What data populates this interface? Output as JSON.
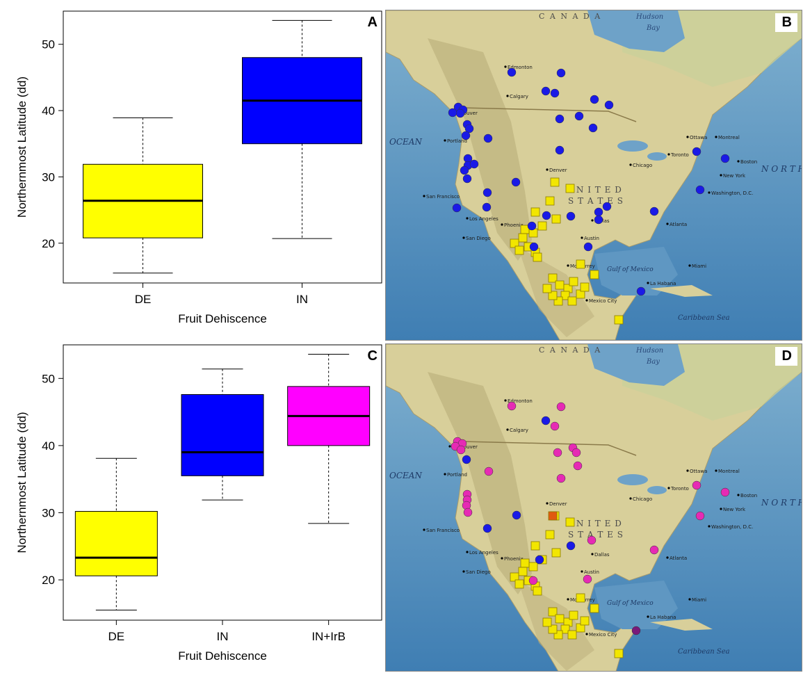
{
  "chart_data": [
    {
      "panel": "A",
      "type": "boxplot",
      "xlabel": "Fruit Dehiscence",
      "ylabel": "Northernmost Latitude (dd)",
      "ylim": [
        14,
        55
      ],
      "yticks": [
        20,
        30,
        40,
        50
      ],
      "categories": [
        "DE",
        "IN"
      ],
      "boxes": [
        {
          "label": "DE",
          "min": 15.5,
          "q1": 20.8,
          "median": 26.4,
          "q3": 31.9,
          "max": 38.9,
          "color": "#ffff00"
        },
        {
          "label": "IN",
          "min": 20.7,
          "q1": 35.0,
          "median": 41.5,
          "q3": 48.0,
          "max": 53.6,
          "color": "#0000ff"
        }
      ]
    },
    {
      "panel": "C",
      "type": "boxplot",
      "xlabel": "Fruit Dehiscence",
      "ylabel": "Northernmost Latitude (dd)",
      "ylim": [
        14,
        55
      ],
      "yticks": [
        20,
        30,
        40,
        50
      ],
      "categories": [
        "DE",
        "IN",
        "IN+IrB"
      ],
      "boxes": [
        {
          "label": "DE",
          "min": 15.5,
          "q1": 20.6,
          "median": 23.3,
          "q3": 30.2,
          "max": 38.1,
          "color": "#ffff00"
        },
        {
          "label": "IN",
          "min": 31.9,
          "q1": 35.5,
          "median": 39.0,
          "q3": 47.6,
          "max": 51.4,
          "color": "#0000ff"
        },
        {
          "label": "IN+IrB",
          "min": 28.4,
          "q1": 40.0,
          "median": 44.4,
          "q3": 48.8,
          "max": 53.6,
          "color": "#ff00ff"
        }
      ]
    }
  ],
  "maps": {
    "B": {
      "letter": "B",
      "labels": {
        "canada": "C A N A D A",
        "hudson": "Hudson",
        "bay": "Bay",
        "us1": "U N I T E D",
        "us2": "S T A T E S",
        "ocean": "OCEAN",
        "north": "N O R T H",
        "gulf": "Gulf of Mexico",
        "carib": "Caribbean Sea",
        "sanfran": "San Francisco",
        "losangeles": "Los Angeles",
        "denver": "Denver",
        "chicago": "Chicago",
        "newyork": "New York",
        "mexicocity": "Mexico City",
        "havana": "La Habana",
        "calgary": "Calgary",
        "edmonton": "Edmonton",
        "vancouver": "Vancouver",
        "portland": "Portland",
        "montreal": "Montreal",
        "ottawa": "Ottawa",
        "boston": "Boston",
        "atlanta": "Atlanta",
        "miami": "Miami",
        "dallas": "Dallas",
        "phoenix": "Phoenix",
        "austin": "Austin",
        "monterrey": "Monterrey",
        "washington": "Washington, D.C.",
        "sandiego": "San Diego",
        "toronto": "Toronto"
      },
      "colors": {
        "blue": "#1a1ae6",
        "yellow": "#f2e600"
      }
    },
    "D": {
      "letter": "D",
      "labels": {
        "canada": "C A N A D A",
        "hudson": "Hudson",
        "bay": "Bay",
        "us1": "U N I T E D",
        "us2": "S T A T E S",
        "ocean": "OCEAN",
        "north": "N O R T H",
        "gulf": "Gulf of Mexico",
        "carib": "Caribbean Sea",
        "sanfran": "San Francisco",
        "losangeles": "Los Angeles",
        "denver": "Denver",
        "chicago": "Chicago",
        "newyork": "New York",
        "mexicocity": "Mexico City",
        "havana": "La Habana",
        "calgary": "Calgary",
        "edmonton": "Edmonton",
        "vancouver": "Vancouver",
        "portland": "Portland",
        "montreal": "Montreal",
        "ottawa": "Ottawa",
        "boston": "Boston",
        "atlanta": "Atlanta",
        "miami": "Miami",
        "dallas": "Dallas",
        "phoenix": "Phoenix",
        "austin": "Austin",
        "monterrey": "Monterrey",
        "washington": "Washington, D.C.",
        "sandiego": "San Diego",
        "toronto": "Toronto"
      },
      "colors": {
        "blue": "#1a1ae6",
        "yellow": "#f2e600",
        "magenta": "#e62ab4",
        "orange": "#e05a10",
        "purple": "#7a1a7a"
      }
    }
  }
}
